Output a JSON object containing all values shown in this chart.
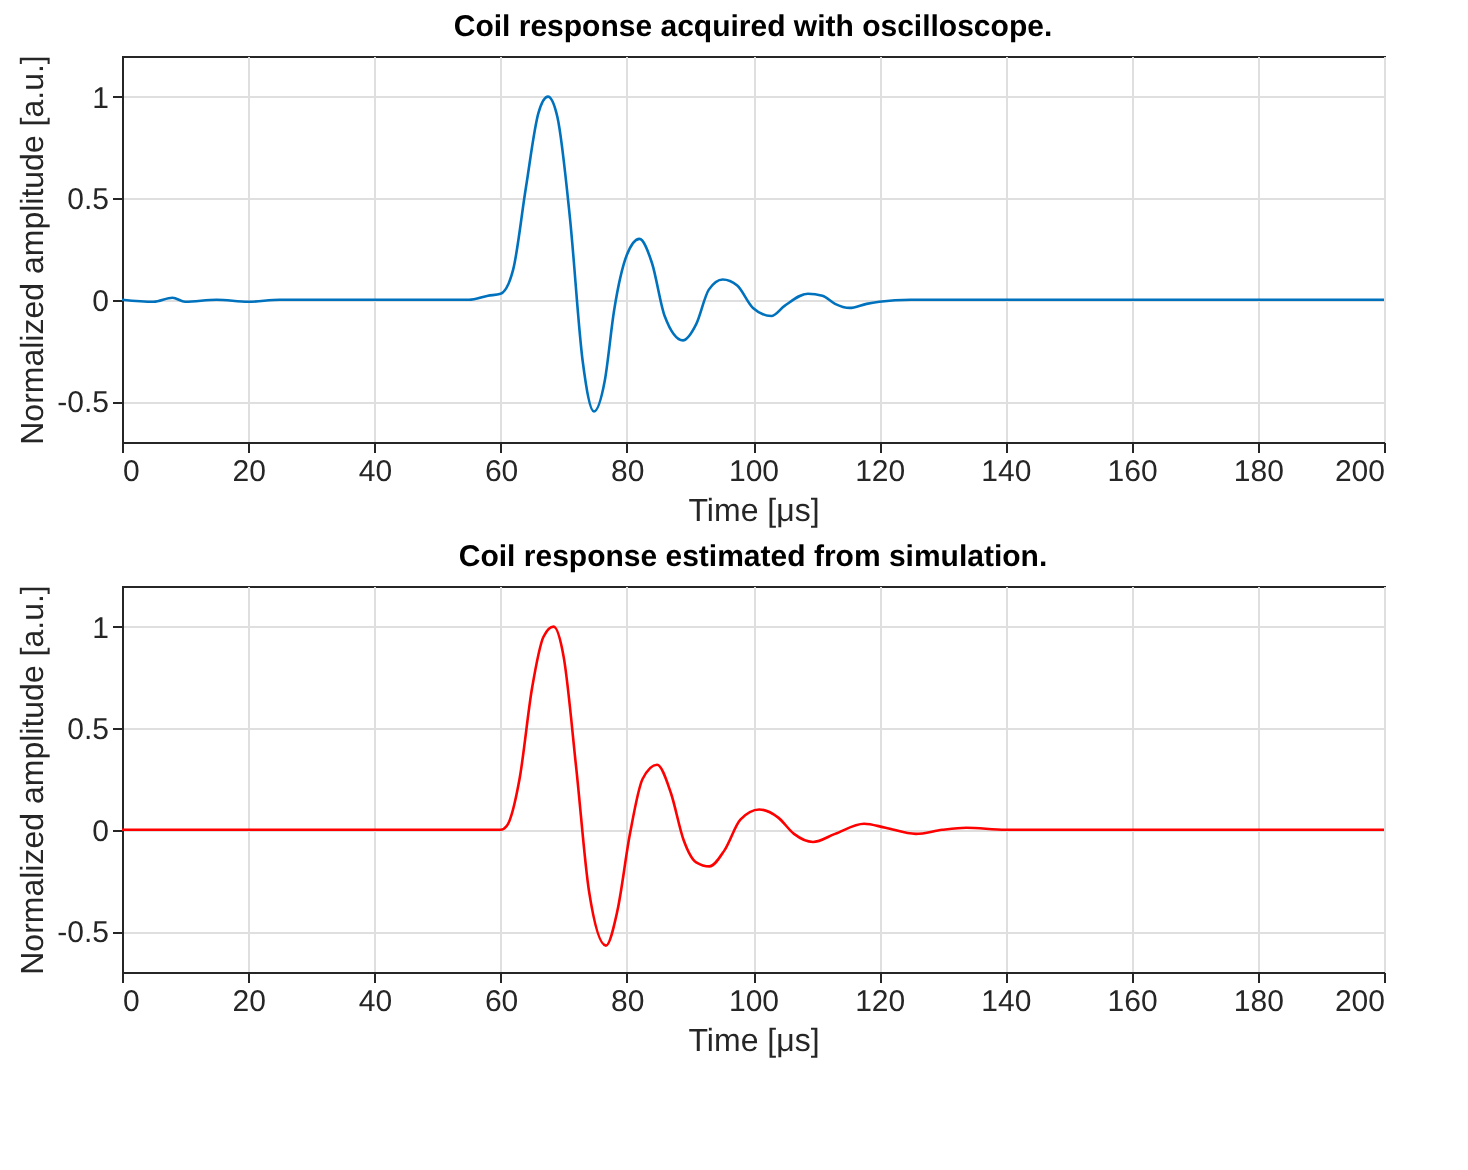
{
  "chart_data": [
    {
      "type": "line",
      "title": "Coil response acquired with oscilloscope.",
      "xlabel": "Time [μs]",
      "ylabel": "Normalized amplitude [a.u.]",
      "xlim": [
        0,
        200
      ],
      "xticks": [
        0,
        20,
        40,
        60,
        80,
        100,
        120,
        140,
        160,
        180,
        200
      ],
      "ylim": [
        -0.7,
        1.2
      ],
      "yticks": [
        -0.5,
        0,
        0.5,
        1
      ],
      "grid": true,
      "x": [
        0,
        5,
        8,
        10,
        15,
        20,
        25,
        30,
        35,
        40,
        45,
        50,
        55,
        58,
        60,
        62,
        64,
        66,
        67.5,
        69,
        71,
        73,
        74.8,
        76.5,
        78,
        80,
        82,
        84,
        86,
        88.9,
        91,
        93,
        95.2,
        97.5,
        100,
        102.9,
        105,
        108.7,
        111,
        113,
        115.3,
        118,
        120,
        125,
        130,
        140,
        150,
        160,
        170,
        180,
        190,
        200
      ],
      "series": [
        {
          "color": "#0072bd",
          "values": [
            0,
            -0.01,
            0.01,
            -0.01,
            0,
            -0.01,
            0,
            0,
            0,
            0,
            0,
            0,
            0,
            0.02,
            0.03,
            0.15,
            0.55,
            0.92,
            1,
            0.9,
            0.4,
            -0.3,
            -0.55,
            -0.4,
            -0.05,
            0.22,
            0.3,
            0.18,
            -0.08,
            -0.2,
            -0.12,
            0.05,
            0.1,
            0.07,
            -0.04,
            -0.08,
            -0.03,
            0.03,
            0.02,
            -0.02,
            -0.04,
            -0.02,
            -0.01,
            0,
            0,
            0,
            0,
            0,
            0,
            0,
            0,
            0
          ]
        }
      ]
    },
    {
      "type": "line",
      "title": "Coil response estimated from simulation.",
      "xlabel": "Time [μs]",
      "ylabel": "Normalized amplitude [a.u.]",
      "xlim": [
        0,
        200
      ],
      "xticks": [
        0,
        20,
        40,
        60,
        80,
        100,
        120,
        140,
        160,
        180,
        200
      ],
      "ylim": [
        -0.7,
        1.2
      ],
      "yticks": [
        -0.5,
        0,
        0.5,
        1
      ],
      "grid": true,
      "x": [
        0,
        60,
        61,
        63,
        65,
        66.8,
        68.4,
        70,
        72,
        74,
        76.7,
        78.5,
        80.5,
        82.5,
        84.8,
        87,
        89,
        91,
        93.1,
        95.5,
        98,
        101,
        104,
        106.5,
        109.5,
        113,
        117.6,
        121,
        125.8,
        130,
        133.8,
        140,
        150,
        200
      ],
      "series": [
        {
          "color": "#ff0000",
          "values": [
            0,
            0,
            0.02,
            0.25,
            0.7,
            0.95,
            1,
            0.85,
            0.3,
            -0.3,
            -0.57,
            -0.4,
            -0.02,
            0.25,
            0.32,
            0.18,
            -0.05,
            -0.16,
            -0.18,
            -0.1,
            0.05,
            0.1,
            0.06,
            -0.02,
            -0.06,
            -0.02,
            0.03,
            0.01,
            -0.02,
            0,
            0.01,
            0,
            0,
            0
          ]
        }
      ]
    }
  ]
}
